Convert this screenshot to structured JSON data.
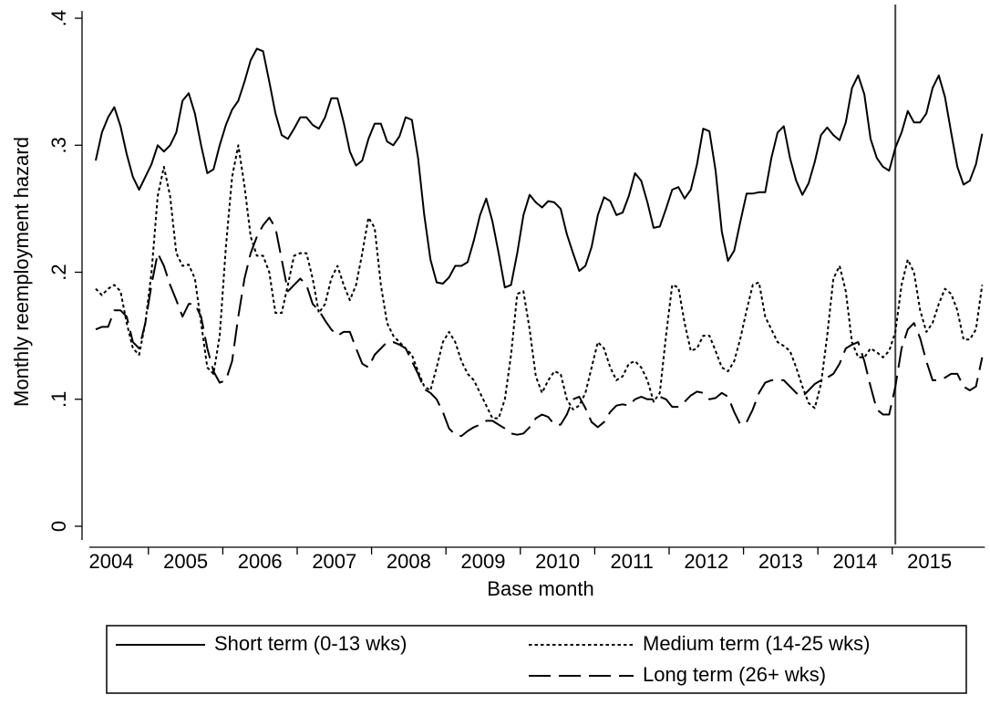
{
  "chart_data": {
    "type": "line",
    "x_label": "Base month",
    "y_label": "Monthly reemployment hazard",
    "categories": [
      null,
      null,
      null,
      "2004",
      null,
      null,
      null,
      null,
      null,
      null,
      null,
      null,
      null,
      null,
      null,
      "2005",
      null,
      null,
      null,
      null,
      null,
      null,
      null,
      null,
      null,
      null,
      null,
      "2006",
      null,
      null,
      null,
      null,
      null,
      null,
      null,
      null,
      null,
      null,
      null,
      "2007",
      null,
      null,
      null,
      null,
      null,
      null,
      null,
      null,
      null,
      null,
      null,
      "2008",
      null,
      null,
      null,
      null,
      null,
      null,
      null,
      null,
      null,
      null,
      null,
      "2009",
      null,
      null,
      null,
      null,
      null,
      null,
      null,
      null,
      null,
      null,
      null,
      "2010",
      null,
      null,
      null,
      null,
      null,
      null,
      null,
      null,
      null,
      null,
      null,
      "2011",
      null,
      null,
      null,
      null,
      null,
      null,
      null,
      null,
      null,
      null,
      null,
      "2012",
      null,
      null,
      null,
      null,
      null,
      null,
      null,
      null,
      null,
      null,
      null,
      "2013",
      null,
      null,
      null,
      null,
      null,
      null,
      null,
      null,
      null,
      null,
      null,
      "2014",
      null,
      null,
      null,
      null,
      null,
      null,
      null,
      null,
      null,
      null,
      null,
      "2015",
      null,
      null,
      null,
      null,
      null,
      null,
      null,
      null
    ],
    "series": [
      {
        "name": "Short term (0-13 wks)",
        "color": "#000000",
        "dash": "solid",
        "values": [
          0.288,
          0.31,
          0.322,
          0.33,
          0.315,
          0.293,
          0.275,
          0.265,
          0.275,
          0.285,
          0.3,
          0.295,
          0.3,
          0.31,
          0.335,
          0.341,
          0.325,
          0.3,
          0.278,
          0.281,
          0.3,
          0.316,
          0.328,
          0.335,
          0.35,
          0.367,
          0.376,
          0.374,
          0.35,
          0.325,
          0.308,
          0.305,
          0.313,
          0.322,
          0.322,
          0.316,
          0.313,
          0.322,
          0.337,
          0.337,
          0.318,
          0.295,
          0.284,
          0.288,
          0.305,
          0.317,
          0.317,
          0.303,
          0.3,
          0.307,
          0.322,
          0.32,
          0.29,
          0.245,
          0.21,
          0.192,
          0.191,
          0.196,
          0.205,
          0.205,
          0.208,
          0.225,
          0.245,
          0.258,
          0.24,
          0.215,
          0.188,
          0.19,
          0.215,
          0.245,
          0.261,
          0.255,
          0.251,
          0.256,
          0.255,
          0.25,
          0.23,
          0.215,
          0.201,
          0.205,
          0.22,
          0.245,
          0.259,
          0.256,
          0.245,
          0.247,
          0.26,
          0.278,
          0.272,
          0.255,
          0.235,
          0.236,
          0.25,
          0.265,
          0.267,
          0.258,
          0.265,
          0.285,
          0.313,
          0.311,
          0.28,
          0.232,
          0.209,
          0.217,
          0.24,
          0.262,
          0.262,
          0.263,
          0.263,
          0.29,
          0.31,
          0.315,
          0.29,
          0.272,
          0.261,
          0.27,
          0.287,
          0.308,
          0.314,
          0.308,
          0.304,
          0.318,
          0.345,
          0.355,
          0.34,
          0.305,
          0.29,
          0.283,
          0.28,
          0.298,
          0.31,
          0.327,
          0.318,
          0.318,
          0.325,
          0.345,
          0.355,
          0.338,
          0.31,
          0.283,
          0.269,
          0.272,
          0.285,
          0.309
        ]
      },
      {
        "name": "Medium term (14-25 wks)",
        "color": "#000000",
        "dash": "dot",
        "values": [
          0.187,
          0.182,
          0.187,
          0.19,
          0.185,
          0.16,
          0.14,
          0.135,
          0.16,
          0.2,
          0.26,
          0.283,
          0.26,
          0.215,
          0.205,
          0.206,
          0.195,
          0.16,
          0.125,
          0.12,
          0.15,
          0.22,
          0.275,
          0.3,
          0.268,
          0.228,
          0.213,
          0.213,
          0.2,
          0.168,
          0.168,
          0.19,
          0.213,
          0.215,
          0.215,
          0.195,
          0.168,
          0.175,
          0.195,
          0.205,
          0.19,
          0.178,
          0.19,
          0.215,
          0.243,
          0.235,
          0.19,
          0.16,
          0.15,
          0.145,
          0.14,
          0.135,
          0.122,
          0.11,
          0.107,
          0.125,
          0.145,
          0.153,
          0.145,
          0.13,
          0.12,
          0.115,
          0.105,
          0.095,
          0.085,
          0.085,
          0.1,
          0.135,
          0.183,
          0.185,
          0.155,
          0.118,
          0.105,
          0.115,
          0.122,
          0.12,
          0.1,
          0.092,
          0.095,
          0.105,
          0.125,
          0.145,
          0.14,
          0.125,
          0.115,
          0.118,
          0.128,
          0.13,
          0.125,
          0.115,
          0.098,
          0.105,
          0.15,
          0.19,
          0.188,
          0.16,
          0.138,
          0.14,
          0.15,
          0.15,
          0.138,
          0.125,
          0.122,
          0.13,
          0.148,
          0.17,
          0.19,
          0.192,
          0.165,
          0.155,
          0.145,
          0.142,
          0.138,
          0.125,
          0.11,
          0.097,
          0.093,
          0.112,
          0.15,
          0.195,
          0.205,
          0.185,
          0.145,
          0.133,
          0.133,
          0.14,
          0.137,
          0.133,
          0.138,
          0.153,
          0.19,
          0.21,
          0.2,
          0.17,
          0.153,
          0.16,
          0.175,
          0.187,
          0.183,
          0.17,
          0.147,
          0.147,
          0.155,
          0.19
        ]
      },
      {
        "name": "Long term (26+ wks)",
        "color": "#000000",
        "dash": "longdash",
        "values": [
          0.155,
          0.157,
          0.157,
          0.17,
          0.17,
          0.165,
          0.145,
          0.14,
          0.16,
          0.19,
          0.215,
          0.205,
          0.19,
          0.178,
          0.165,
          0.175,
          0.175,
          0.165,
          0.14,
          0.122,
          0.113,
          0.115,
          0.13,
          0.165,
          0.195,
          0.215,
          0.228,
          0.237,
          0.243,
          0.235,
          0.21,
          0.185,
          0.19,
          0.195,
          0.19,
          0.175,
          0.17,
          0.162,
          0.155,
          0.15,
          0.153,
          0.153,
          0.14,
          0.128,
          0.125,
          0.135,
          0.14,
          0.145,
          0.145,
          0.143,
          0.14,
          0.13,
          0.12,
          0.108,
          0.105,
          0.1,
          0.09,
          0.077,
          0.072,
          0.071,
          0.075,
          0.078,
          0.08,
          0.083,
          0.083,
          0.08,
          0.077,
          0.073,
          0.072,
          0.073,
          0.078,
          0.085,
          0.088,
          0.086,
          0.08,
          0.08,
          0.088,
          0.1,
          0.102,
          0.093,
          0.082,
          0.078,
          0.082,
          0.09,
          0.095,
          0.096,
          0.095,
          0.1,
          0.102,
          0.1,
          0.1,
          0.102,
          0.1,
          0.094,
          0.094,
          0.098,
          0.103,
          0.106,
          0.105,
          0.1,
          0.101,
          0.105,
          0.102,
          0.09,
          0.08,
          0.082,
          0.092,
          0.105,
          0.113,
          0.115,
          0.115,
          0.115,
          0.11,
          0.105,
          0.102,
          0.107,
          0.112,
          0.115,
          0.117,
          0.12,
          0.128,
          0.14,
          0.143,
          0.145,
          0.13,
          0.11,
          0.092,
          0.088,
          0.088,
          0.11,
          0.14,
          0.155,
          0.16,
          0.148,
          0.13,
          0.115,
          0.115,
          0.117,
          0.12,
          0.12,
          0.11,
          0.107,
          0.11,
          0.133
        ]
      }
    ],
    "xline": 129,
    "ylim": [
      0,
      0.4
    ],
    "yticks": [
      0,
      {
        "value": 0.1,
        "label": ".1"
      },
      {
        "value": 0.2,
        "label": ".2"
      },
      {
        "value": 0.3,
        "label": ".3"
      },
      {
        "value": 0.4,
        "label": ".4"
      }
    ],
    "grid": false,
    "legend": "bottom"
  }
}
